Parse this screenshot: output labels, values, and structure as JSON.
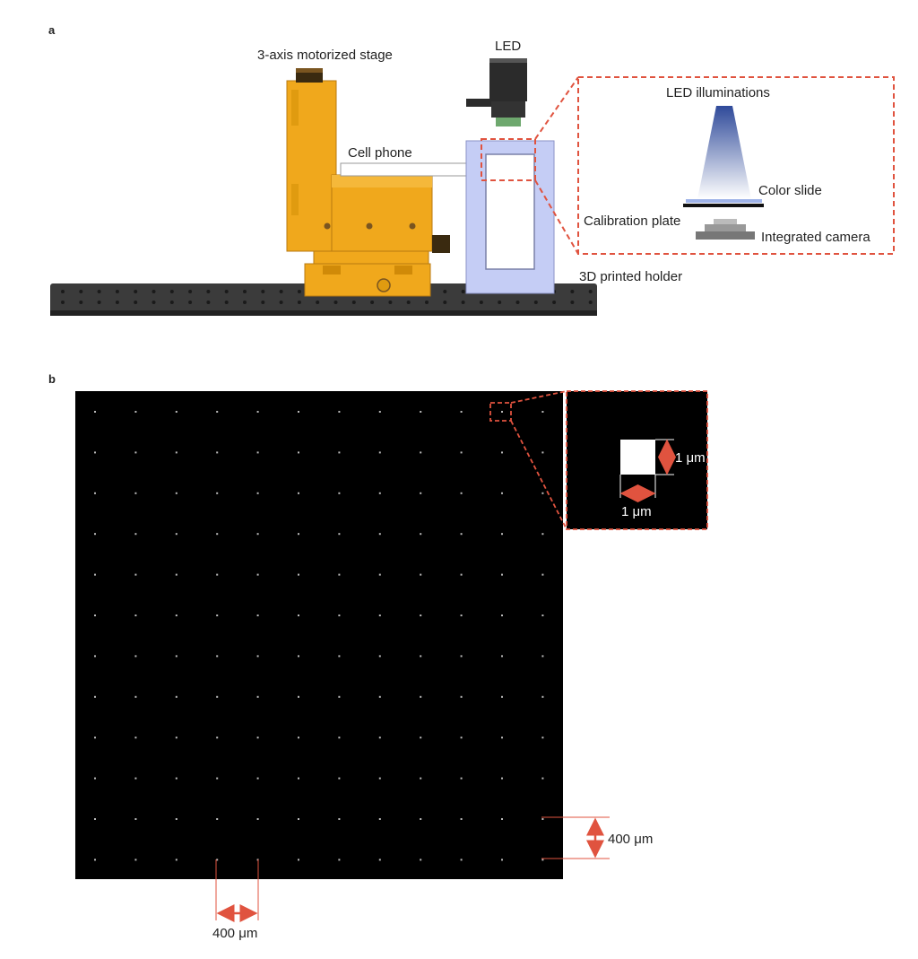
{
  "panel_a": {
    "letter": "a",
    "labels": {
      "stage": "3-axis motorized stage",
      "led": "LED",
      "cell_phone": "Cell phone",
      "holder": "3D printed holder"
    },
    "inset": {
      "led_illuminations": "LED illuminations",
      "color_slide": "Color slide",
      "calibration_plate": "Calibration plate",
      "integrated_camera": "Integrated camera"
    },
    "colors": {
      "stage": "#f0a81c",
      "holder": "#c5cdf5",
      "table": "#3a3a3a",
      "callout": "#e0533f"
    }
  },
  "panel_b": {
    "letter": "b",
    "grid": {
      "rows": 12,
      "cols": 12
    },
    "zoom": {
      "width_label": "1 μm",
      "height_label": "1 μm"
    },
    "spacing_x_label": "400 μm",
    "spacing_y_label": "400 μm",
    "colors": {
      "background": "#000000",
      "dot": "#bbbbbb",
      "arrow": "#e0533f"
    }
  }
}
